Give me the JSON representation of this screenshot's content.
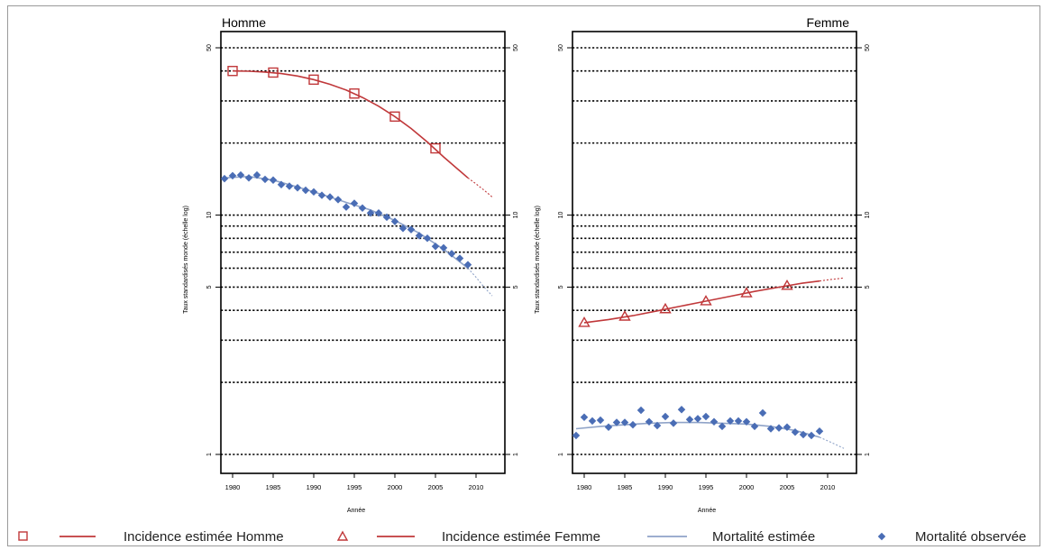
{
  "colors": {
    "incidence": "#c0383a",
    "mortality_line": "#8fa3c8",
    "mortality_points": "#4a6db5",
    "grid": "#000000"
  },
  "chart_data": [
    {
      "type": "line",
      "panel_title": "Homme",
      "xlabel": "Année",
      "ylabel": "Taux standardisés monde (échelle log)",
      "y_scale": "log",
      "ylim": [
        0.9,
        55
      ],
      "xlim": [
        1979,
        2013
      ],
      "x_ticks": [
        1980,
        1985,
        1990,
        1995,
        2000,
        2005,
        2010
      ],
      "y_ticks": [
        1,
        5,
        10,
        50
      ],
      "y_gridlines": [
        1,
        2,
        3,
        4,
        5,
        6,
        7,
        8,
        9,
        10,
        20,
        30,
        40,
        50
      ],
      "series": [
        {
          "name": "Incidence estimée Homme",
          "kind": "incidence",
          "marker": "square",
          "x": [
            1980,
            1982,
            1984,
            1986,
            1988,
            1990,
            1992,
            1994,
            1996,
            1998,
            2000,
            2002,
            2004,
            2006,
            2008,
            2009
          ],
          "y": [
            40.0,
            39.9,
            39.6,
            39.0,
            38.1,
            36.8,
            35.2,
            33.3,
            31.0,
            28.5,
            25.8,
            23.0,
            20.2,
            17.5,
            15.3,
            14.3
          ],
          "projection_x": [
            2009,
            2010,
            2011,
            2012
          ],
          "projection_y": [
            14.3,
            13.5,
            12.7,
            11.9
          ],
          "marker_x": [
            1980,
            1985,
            1990,
            1995,
            2000,
            2005
          ],
          "marker_y": [
            40.0,
            39.4,
            36.8,
            32.2,
            25.8,
            19.0
          ]
        },
        {
          "name": "Mortalité estimée",
          "kind": "mortality_line",
          "x": [
            1979,
            1982,
            1985,
            1988,
            1991,
            1994,
            1997,
            2000,
            2003,
            2006,
            2009
          ],
          "y": [
            14.3,
            14.5,
            14.0,
            13.1,
            12.2,
            11.3,
            10.5,
            9.5,
            8.4,
            7.2,
            6.0
          ],
          "projection_x": [
            2009,
            2010,
            2011,
            2012
          ],
          "projection_y": [
            6.0,
            5.5,
            5.0,
            4.6
          ]
        },
        {
          "name": "Mortalité observée",
          "kind": "mortality_points",
          "x": [
            1979,
            1980,
            1981,
            1982,
            1983,
            1984,
            1985,
            1986,
            1987,
            1988,
            1989,
            1990,
            1991,
            1992,
            1993,
            1994,
            1995,
            1996,
            1997,
            1998,
            1999,
            2000,
            2001,
            2002,
            2003,
            2004,
            2005,
            2006,
            2007,
            2008,
            2009
          ],
          "y": [
            14.2,
            14.6,
            14.7,
            14.3,
            14.7,
            14.1,
            14.0,
            13.4,
            13.2,
            13.0,
            12.7,
            12.5,
            12.1,
            11.9,
            11.6,
            10.8,
            11.2,
            10.7,
            10.2,
            10.2,
            9.8,
            9.4,
            8.8,
            8.7,
            8.2,
            8.0,
            7.4,
            7.3,
            6.9,
            6.6,
            6.2
          ]
        }
      ]
    },
    {
      "type": "line",
      "panel_title": "Femme",
      "xlabel": "Année",
      "ylabel": "Taux standardisés monde (échelle log)",
      "y_scale": "log",
      "ylim": [
        0.9,
        55
      ],
      "xlim": [
        1979,
        2013
      ],
      "x_ticks": [
        1980,
        1985,
        1990,
        1995,
        2000,
        2005,
        2010
      ],
      "y_ticks": [
        1,
        5,
        10,
        50
      ],
      "y_gridlines": [
        1,
        2,
        3,
        4,
        5,
        6,
        7,
        8,
        9,
        10,
        20,
        30,
        40,
        50
      ],
      "series": [
        {
          "name": "Incidence estimée Femme",
          "kind": "incidence",
          "marker": "triangle",
          "x": [
            1980,
            1983,
            1986,
            1989,
            1992,
            1995,
            1998,
            2001,
            2004,
            2007,
            2009
          ],
          "y": [
            3.55,
            3.66,
            3.8,
            3.98,
            4.17,
            4.37,
            4.58,
            4.8,
            5.0,
            5.2,
            5.3
          ],
          "projection_x": [
            2009,
            2010,
            2011,
            2012
          ],
          "projection_y": [
            5.3,
            5.36,
            5.41,
            5.46
          ],
          "marker_x": [
            1980,
            1985,
            1990,
            1995,
            2000,
            2005
          ],
          "marker_y": [
            3.55,
            3.77,
            4.05,
            4.37,
            4.72,
            5.07
          ]
        },
        {
          "name": "Mortalité estimée",
          "kind": "mortality_line",
          "x": [
            1979,
            1982,
            1985,
            1988,
            1991,
            1994,
            1997,
            2000,
            2003,
            2006,
            2009
          ],
          "y": [
            1.28,
            1.31,
            1.33,
            1.35,
            1.36,
            1.36,
            1.35,
            1.34,
            1.31,
            1.26,
            1.18
          ],
          "projection_x": [
            2009,
            2010,
            2011,
            2012
          ],
          "projection_y": [
            1.18,
            1.14,
            1.1,
            1.06
          ]
        },
        {
          "name": "Mortalité observée",
          "kind": "mortality_points",
          "x": [
            1979,
            1980,
            1981,
            1982,
            1983,
            1984,
            1985,
            1986,
            1987,
            1988,
            1989,
            1990,
            1991,
            1992,
            1993,
            1994,
            1995,
            1996,
            1997,
            1998,
            1999,
            2000,
            2001,
            2002,
            2003,
            2004,
            2005,
            2006,
            2007,
            2008,
            2009
          ],
          "y": [
            1.2,
            1.43,
            1.38,
            1.39,
            1.3,
            1.36,
            1.36,
            1.33,
            1.53,
            1.37,
            1.32,
            1.44,
            1.35,
            1.54,
            1.4,
            1.41,
            1.44,
            1.37,
            1.31,
            1.38,
            1.38,
            1.37,
            1.31,
            1.49,
            1.28,
            1.29,
            1.3,
            1.24,
            1.21,
            1.2,
            1.25
          ]
        }
      ]
    }
  ],
  "legend": [
    {
      "kind": "incidence",
      "marker": "square",
      "label": "Incidence  estimée Homme"
    },
    {
      "kind": "incidence",
      "marker": "triangle",
      "label": "Incidence estimée Femme"
    },
    {
      "kind": "mortality_line",
      "marker": "none",
      "label": "Mortalité estimée"
    },
    {
      "kind": "mortality_points",
      "marker": "x",
      "label": "Mortalité observée"
    }
  ]
}
